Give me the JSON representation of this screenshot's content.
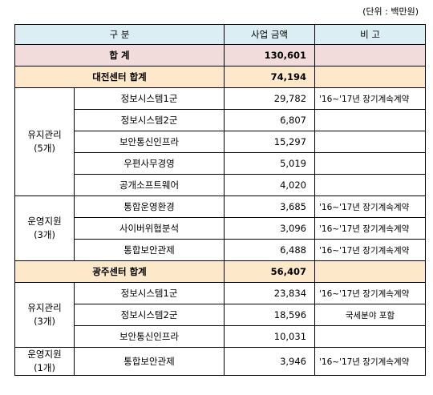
{
  "unit": "(단위 : 백만원)",
  "header": {
    "category": "구 분",
    "amount": "사업 금액",
    "note": "비 고"
  },
  "total": {
    "label": "합 계",
    "amount": "130,601"
  },
  "daejeon": {
    "label": "대전센터 합계",
    "amount": "74,194",
    "maint": {
      "group": "유지관리",
      "count": "(5개)"
    },
    "ops": {
      "group": "운영지원",
      "count": "(3개)"
    },
    "rows": [
      {
        "name": "정보시스템1군",
        "amount": "29,782",
        "note": "'16~'17년 장기계속계약"
      },
      {
        "name": "정보시스템2군",
        "amount": "6,807",
        "note": ""
      },
      {
        "name": "보안통신인프라",
        "amount": "15,297",
        "note": ""
      },
      {
        "name": "우편사무경영",
        "amount": "5,019",
        "note": ""
      },
      {
        "name": "공개소프트웨어",
        "amount": "4,020",
        "note": ""
      },
      {
        "name": "통합운영환경",
        "amount": "3,685",
        "note": "'16~'17년 장기계속계약"
      },
      {
        "name": "사이버위협분석",
        "amount": "3,096",
        "note": "'16~'17년 장기계속계약"
      },
      {
        "name": "통합보안관제",
        "amount": "6,488",
        "note": "'16~'17년 장기계속계약"
      }
    ]
  },
  "gwangju": {
    "label": "광주센터 합계",
    "amount": "56,407",
    "maint": {
      "group": "유지관리",
      "count": "(3개)"
    },
    "ops": {
      "group": "운영지원",
      "count": "(1개)"
    },
    "rows": [
      {
        "name": "정보시스템1군",
        "amount": "23,834",
        "note": "'16~'17년 장기계속계약"
      },
      {
        "name": "정보시스템2군",
        "amount": "18,596",
        "note": "국세분야 포함"
      },
      {
        "name": "보안통신인프라",
        "amount": "10,031",
        "note": ""
      },
      {
        "name": "통합보안관제",
        "amount": "3,946",
        "note": "'16~'17년 장기계속계약"
      }
    ]
  }
}
